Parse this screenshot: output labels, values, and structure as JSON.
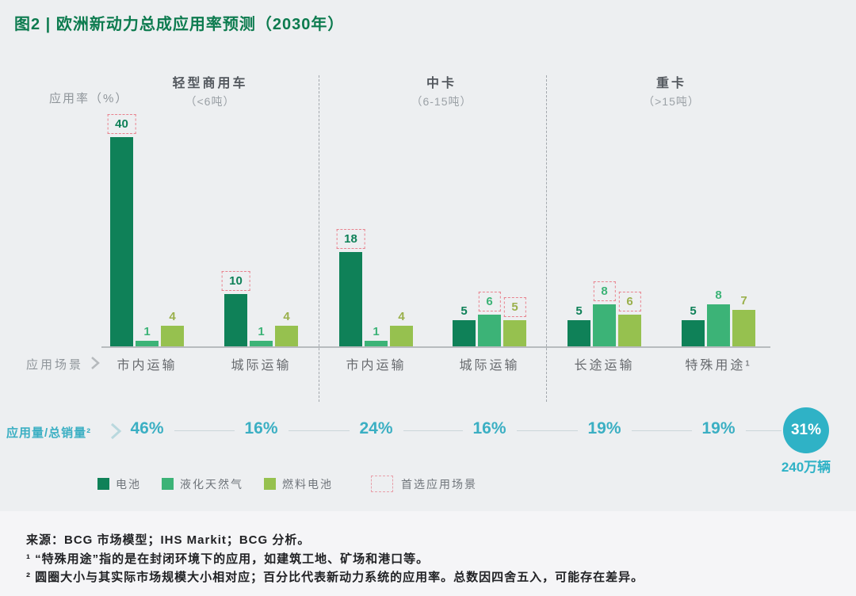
{
  "title": "图2 | 欧洲新动力总成应用率预测（2030年）",
  "y_axis_label": "应用率（%）",
  "x_axis_label": "应用场景",
  "metrics_label": "应用量/总销量²",
  "colors": {
    "title_green": "#0d7b4f",
    "battery_green": "#0f8158",
    "lng_green": "#3cb377",
    "fuel_cell_green": "#96c14f",
    "teal": "#3bafc3",
    "circle_teal": "#2fb2c6",
    "preferred_box_pink": "#e8828e",
    "connector_gray": "#ccd6d9"
  },
  "chart_data": {
    "type": "bar",
    "title": "图2 | 欧洲新动力总成应用率预测（2030年）",
    "ylabel": "应用率（%）",
    "xlabel": "应用场景",
    "ylim": [
      0,
      40
    ],
    "grid": false,
    "series": [
      {
        "name": "电池",
        "key": "battery",
        "color": "#0f8158",
        "label_color": "#0f8158"
      },
      {
        "name": "液化天然气",
        "key": "lng",
        "color": "#3cb377",
        "label_color": "#3cb377"
      },
      {
        "name": "燃料电池",
        "key": "fuel-cell",
        "color": "#96c14f",
        "label_color": "#9ab04c"
      }
    ],
    "groups": [
      {
        "title": "轻型商用车",
        "subtitle": "（<6吨）"
      },
      {
        "title": "中卡",
        "subtitle": "（6-15吨）"
      },
      {
        "title": "重卡",
        "subtitle": "（>15吨）"
      }
    ],
    "scenarios": [
      {
        "group": 0,
        "label": "市内运输",
        "values": [
          40,
          1,
          4
        ],
        "preferred": [
          true,
          false,
          false
        ],
        "share": "46%"
      },
      {
        "group": 0,
        "label": "城际运输",
        "values": [
          10,
          1,
          4
        ],
        "preferred": [
          true,
          false,
          false
        ],
        "share": "16%"
      },
      {
        "group": 1,
        "label": "市内运输",
        "values": [
          18,
          1,
          4
        ],
        "preferred": [
          true,
          false,
          false
        ],
        "share": "24%"
      },
      {
        "group": 1,
        "label": "城际运输",
        "values": [
          5,
          6,
          5
        ],
        "preferred": [
          false,
          true,
          true
        ],
        "share": "16%"
      },
      {
        "group": 2,
        "label": "长途运输",
        "values": [
          5,
          8,
          6
        ],
        "preferred": [
          false,
          true,
          true
        ],
        "share": "19%"
      },
      {
        "group": 2,
        "label": "特殊用途¹",
        "values": [
          5,
          8,
          7
        ],
        "preferred": [
          false,
          false,
          false
        ],
        "share": "19%"
      }
    ],
    "total": {
      "share": "31%",
      "volume": "240万辆"
    },
    "legend_position": "bottom"
  },
  "legend": {
    "items": [
      {
        "label": "电池",
        "type": "swatch"
      },
      {
        "label": "液化天然气",
        "type": "swatch"
      },
      {
        "label": "燃料电池",
        "type": "swatch"
      },
      {
        "label": "首选应用场景",
        "type": "dashed-box"
      }
    ]
  },
  "footnotes": {
    "source": "来源：BCG 市场模型；IHS Markit；BCG 分析。",
    "note1": "¹ “特殊用途”指的是在封闭环境下的应用，如建筑工地、矿场和港口等。",
    "note2": "² 圆圈大小与其实际市场规模大小相对应；百分比代表新动力系统的应用率。总数因四舍五入，可能存在差异。"
  }
}
